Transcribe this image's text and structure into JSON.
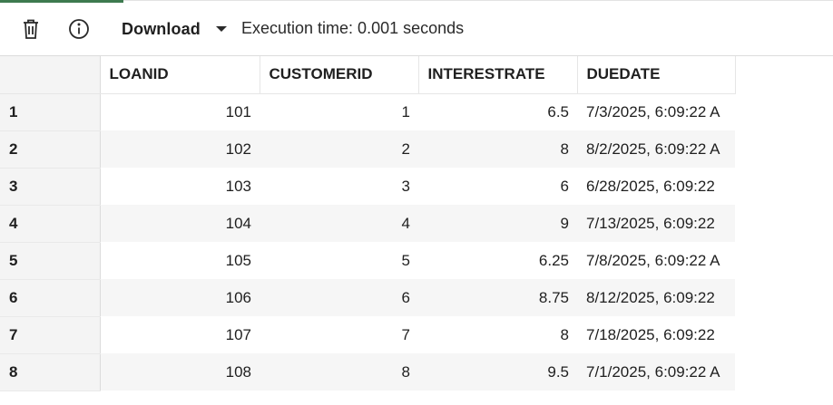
{
  "toolbar": {
    "download_label": "Download",
    "execution_time": "Execution time: 0.001 seconds",
    "icons": {
      "delete": "trash-icon",
      "info": "info-icon",
      "dropdown": "chevron-down-icon"
    }
  },
  "grid": {
    "columns": [
      "LOANID",
      "CUSTOMERID",
      "INTERESTRATE",
      "DUEDATE"
    ],
    "rows": [
      {
        "n": "1",
        "loanid": "101",
        "customerid": "1",
        "interestrate": "6.5",
        "duedate": "7/3/2025, 6:09:22 A"
      },
      {
        "n": "2",
        "loanid": "102",
        "customerid": "2",
        "interestrate": "8",
        "duedate": "8/2/2025, 6:09:22 A"
      },
      {
        "n": "3",
        "loanid": "103",
        "customerid": "3",
        "interestrate": "6",
        "duedate": "6/28/2025, 6:09:22"
      },
      {
        "n": "4",
        "loanid": "104",
        "customerid": "4",
        "interestrate": "9",
        "duedate": "7/13/2025, 6:09:22"
      },
      {
        "n": "5",
        "loanid": "105",
        "customerid": "5",
        "interestrate": "6.25",
        "duedate": "7/8/2025, 6:09:22 A"
      },
      {
        "n": "6",
        "loanid": "106",
        "customerid": "6",
        "interestrate": "8.75",
        "duedate": "8/12/2025, 6:09:22"
      },
      {
        "n": "7",
        "loanid": "107",
        "customerid": "7",
        "interestrate": "8",
        "duedate": "7/18/2025, 6:09:22"
      },
      {
        "n": "8",
        "loanid": "108",
        "customerid": "8",
        "interestrate": "9.5",
        "duedate": "7/1/2025, 6:09:22 A"
      }
    ]
  }
}
